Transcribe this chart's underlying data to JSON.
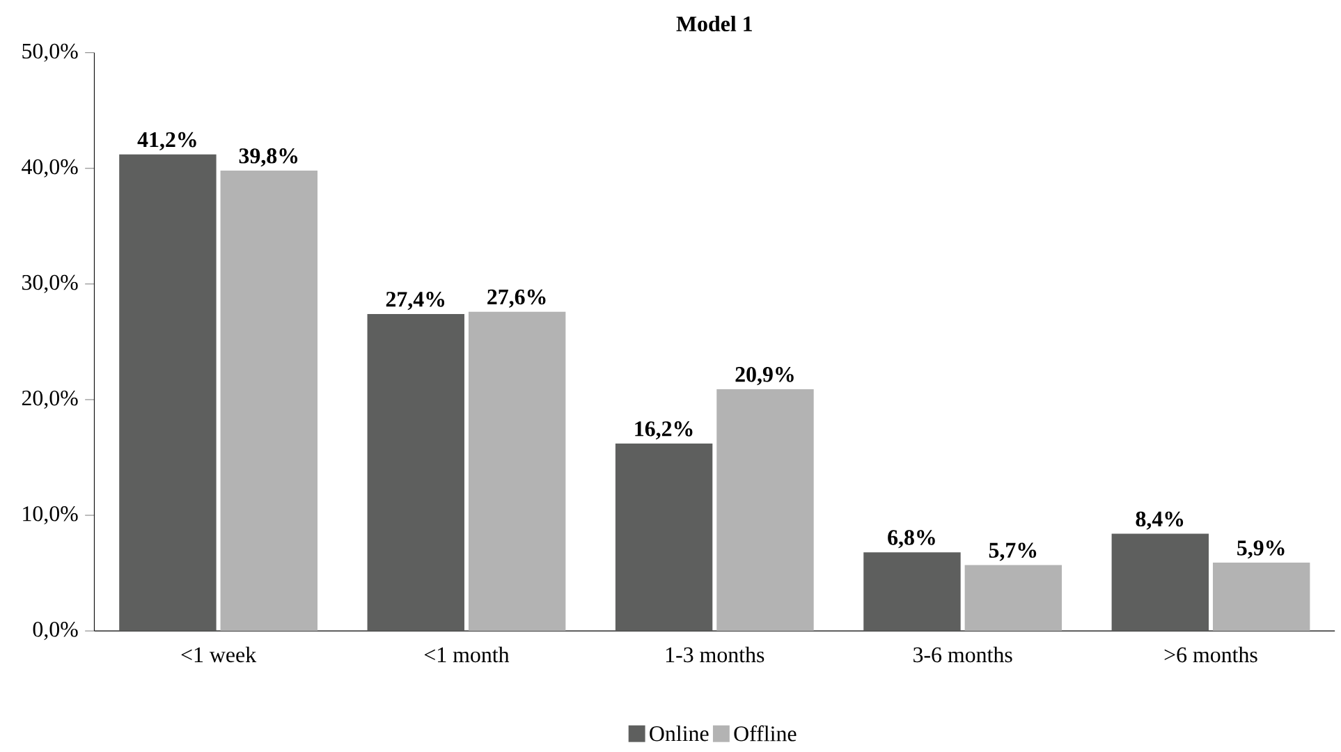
{
  "chart_data": {
    "type": "bar",
    "title": "Model 1",
    "categories": [
      "<1 week",
      "<1 month",
      "1-3 months",
      "3-6 months",
      ">6 months"
    ],
    "series": [
      {
        "name": "Online",
        "color": "#5e5f5e",
        "values": [
          41.2,
          27.4,
          16.2,
          6.8,
          8.4
        ],
        "value_labels": [
          "41,2%",
          "27,4%",
          "16,2%",
          "6,8%",
          "8,4%"
        ]
      },
      {
        "name": "Offline",
        "color": "#b3b3b3",
        "values": [
          39.8,
          27.6,
          20.9,
          5.7,
          5.9
        ],
        "value_labels": [
          "39,8%",
          "27,6%",
          "20,9%",
          "5,7%",
          "5,9%"
        ]
      }
    ],
    "ylim": [
      0,
      50
    ],
    "yticks": [
      {
        "value": 0,
        "label": "0,0%"
      },
      {
        "value": 10,
        "label": "10,0%"
      },
      {
        "value": 20,
        "label": "20,0%"
      },
      {
        "value": 30,
        "label": "30,0%"
      },
      {
        "value": 40,
        "label": "40,0%"
      },
      {
        "value": 50,
        "label": "50,0%"
      }
    ],
    "legend": "bottom"
  }
}
